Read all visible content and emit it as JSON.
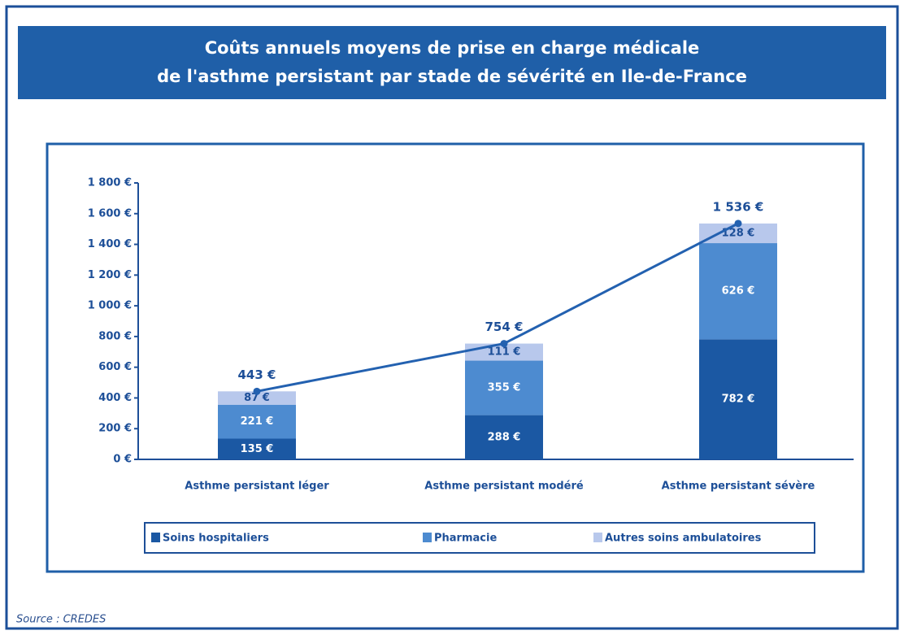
{
  "chart_data": {
    "type": "stacked-bar-line",
    "title": [
      "Coûts annuels moyens de prise en charge médicale",
      "de l'asthme persistant par stade de sévérité en Ile-de-France"
    ],
    "categories": [
      "Asthme persistant léger",
      "Asthme persistant modéré",
      "Asthme persistant sévère"
    ],
    "series": [
      {
        "name": "Soins hospitaliers",
        "color": "#1b58a3",
        "values": [
          135,
          288,
          782
        ],
        "value_labels": [
          "135 €",
          "288 €",
          "782 €"
        ]
      },
      {
        "name": "Pharmacie",
        "color": "#4d8bd0",
        "values": [
          221,
          355,
          626
        ],
        "value_labels": [
          "221 €",
          "355 €",
          "626 €"
        ]
      },
      {
        "name": "Autres soins ambulatoires",
        "color": "#b8c8ec",
        "values": [
          87,
          111,
          128
        ],
        "value_labels": [
          "87 €",
          "111 €",
          "128 €"
        ]
      }
    ],
    "totals": {
      "color": "#2361b0",
      "values": [
        443,
        754,
        1536
      ],
      "value_labels": [
        "443 €",
        "754 €",
        "1 536 €"
      ]
    },
    "ylim": [
      0,
      1800
    ],
    "yticks": [
      {
        "value": 0,
        "label": "0 €"
      },
      {
        "value": 200,
        "label": "200 €"
      },
      {
        "value": 400,
        "label": "400 €"
      },
      {
        "value": 600,
        "label": "600 €"
      },
      {
        "value": 800,
        "label": "800 €"
      },
      {
        "value": 1000,
        "label": "1 000 €"
      },
      {
        "value": 1200,
        "label": "1 200 €"
      },
      {
        "value": 1400,
        "label": "1 400 €"
      },
      {
        "value": 1600,
        "label": "1 600 €"
      },
      {
        "value": 1800,
        "label": "1 800 €"
      }
    ],
    "legend": "bottom",
    "source": "Source : CREDES"
  }
}
